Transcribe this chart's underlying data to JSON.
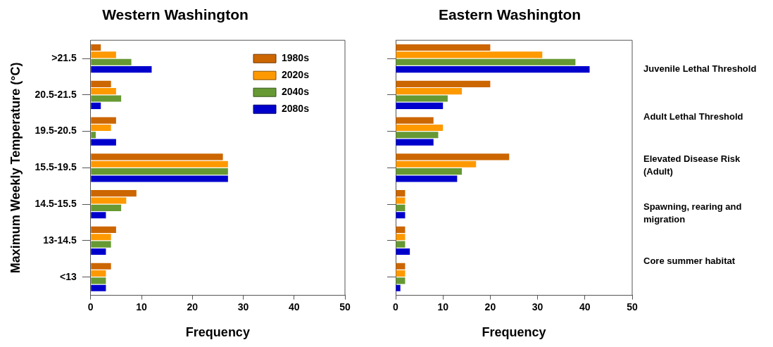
{
  "chart_data": [
    {
      "type": "bar",
      "orientation": "horizontal",
      "title": "Western Washington",
      "xlabel": "Frequency",
      "ylabel": "Maximum Weekly Temperature (°C)",
      "categories": [
        ">21.5",
        "20.5-21.5",
        "19.5-20.5",
        "15.5-19.5",
        "14.5-15.5",
        "13-14.5",
        "<13"
      ],
      "xlim": [
        0,
        50
      ],
      "xticks": [
        0,
        10,
        20,
        30,
        40,
        50
      ],
      "grid": false,
      "legend": "top right",
      "series": [
        {
          "name": "1980s",
          "color": "#cc6600",
          "values": [
            2,
            4,
            5,
            26,
            9,
            5,
            4
          ]
        },
        {
          "name": "2020s",
          "color": "#ff9900",
          "values": [
            5,
            5,
            4,
            27,
            7,
            4,
            3
          ]
        },
        {
          "name": "2040s",
          "color": "#669933",
          "values": [
            8,
            6,
            1,
            27,
            6,
            4,
            3
          ]
        },
        {
          "name": "2080s",
          "color": "#0000cc",
          "values": [
            12,
            2,
            5,
            27,
            3,
            3,
            3
          ]
        }
      ]
    },
    {
      "type": "bar",
      "orientation": "horizontal",
      "title": "Eastern Washington",
      "xlabel": "Frequency",
      "categories": [
        null,
        null,
        null,
        null,
        null,
        null,
        null
      ],
      "xlim": [
        0,
        50
      ],
      "xticks": [
        0,
        10,
        20,
        30,
        40,
        50
      ],
      "grid": false,
      "tick_labels": "x",
      "annotations": [
        "Juvenile Lethal Threshold",
        "Adult Lethal Threshold",
        "Elevated Disease Risk (Adult)",
        "Spawning, rearing and migration",
        "Core summer habitat"
      ],
      "series": [
        {
          "color": "#cc6600",
          "values": [
            20,
            20,
            8,
            24,
            2,
            2,
            2
          ]
        },
        {
          "color": "#ff9900",
          "values": [
            31,
            14,
            10,
            17,
            2,
            2,
            2
          ]
        },
        {
          "color": "#669933",
          "values": [
            38,
            11,
            9,
            14,
            2,
            2,
            2
          ]
        },
        {
          "color": "#0000cc",
          "values": [
            41,
            10,
            8,
            13,
            2,
            3,
            1
          ]
        }
      ]
    }
  ]
}
